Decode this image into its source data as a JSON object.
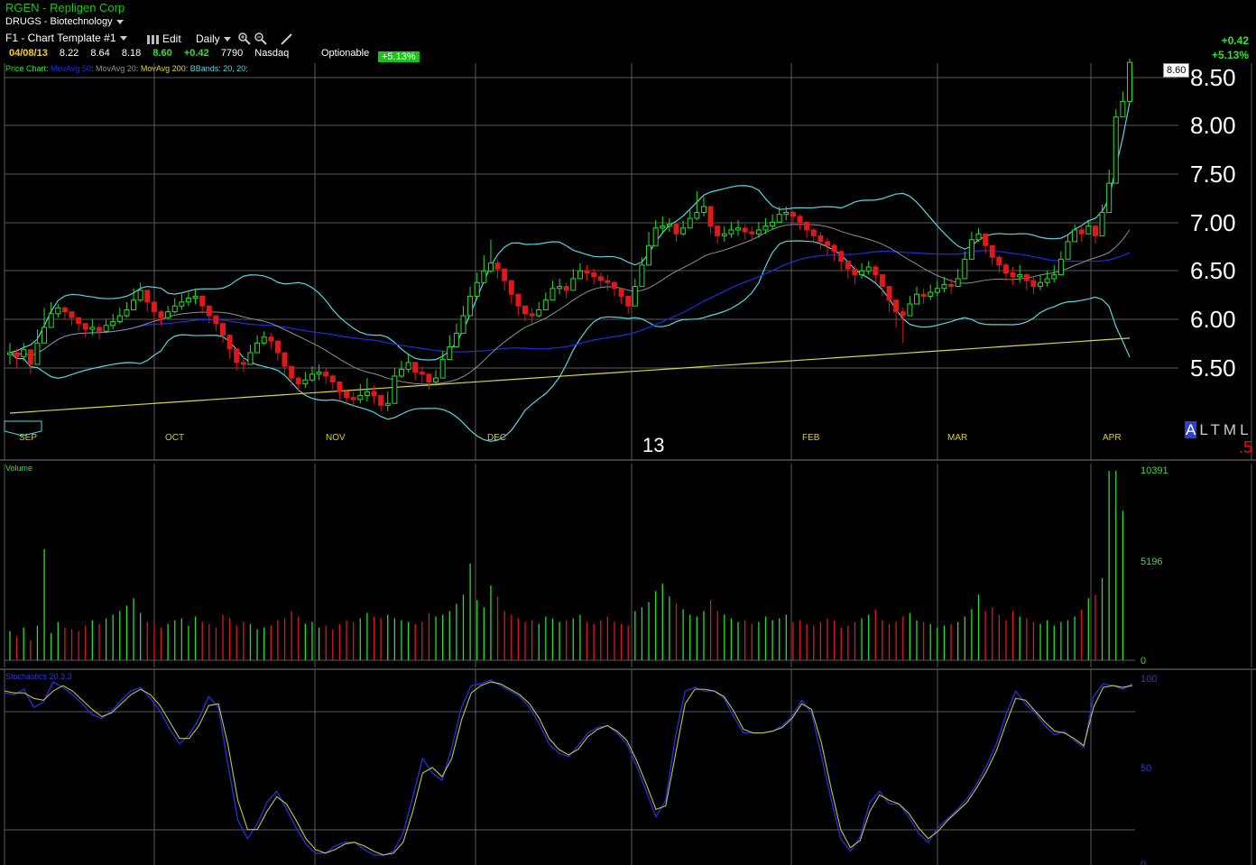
{
  "header": {
    "title": "RGEN - Repligen Corp",
    "sector": "DRUGS - Biotechnology",
    "template": "F1 - Chart Template #1",
    "edit_label": "Edit",
    "period_label": "Daily",
    "optionable_label": "Optionable",
    "pct_badge": "+5.13%",
    "change_top": "+0.42",
    "pct_top": "+5.13%"
  },
  "quote": {
    "date": "04/08/13",
    "open": "8.22",
    "high": "8.64",
    "low": "8.18",
    "close": "8.60",
    "change": "+0.42",
    "volume": "7790",
    "exchange": "Nasdaq"
  },
  "legend": {
    "price_chart": "Price Chart",
    "ma50": "MovAvg 50",
    "ma20": "MovAvg 20",
    "ma200": "MovAvg 200",
    "bbands": "BBands: 20, 20;",
    "sep": ":"
  },
  "colors": {
    "up": "#25e025",
    "down": "#e01818",
    "ma50": "#1c2ee6",
    "ma20": "#8f8f8f",
    "ma200": "#d8d83a",
    "bbands": "#58d6e0",
    "grid": "#5a5a5a",
    "stoch_k": "#2032e0",
    "stoch_d": "#c9c23a",
    "month_label": "#d8d020",
    "vol_axis": "#2ee62e",
    "stoch_axis": "#2a3ae0"
  },
  "price_axis": {
    "ticks": [
      "8.50",
      "8.00",
      "7.50",
      "7.00",
      "6.50",
      "6.00",
      "5.50"
    ],
    "current_tag": "8.60"
  },
  "months": [
    "SEP",
    "OCT",
    "NOV",
    "DEC",
    "FEB",
    "MAR",
    "APR"
  ],
  "year_label": "13",
  "altml": {
    "a": "A",
    "rest": "LTML"
  },
  "red_five": ".5",
  "volume_panel": {
    "label": "Volume",
    "ticks": [
      "10391",
      "5196",
      "0"
    ]
  },
  "stoch_panel": {
    "label": "Stochastics 20,3,3",
    "ticks": [
      "100",
      "50",
      "0"
    ]
  },
  "chart_data": {
    "type": "line",
    "ticker": "RGEN",
    "ylim": [
      5.0,
      8.6
    ],
    "close": [
      5.62,
      5.58,
      5.65,
      5.5,
      5.72,
      5.88,
      6.02,
      6.08,
      6.04,
      5.98,
      5.92,
      5.86,
      5.88,
      5.84,
      5.9,
      5.94,
      6.0,
      6.06,
      6.16,
      6.26,
      6.14,
      6.04,
      5.98,
      6.04,
      6.1,
      6.14,
      6.18,
      6.2,
      6.1,
      6.0,
      5.92,
      5.8,
      5.66,
      5.52,
      5.5,
      5.62,
      5.72,
      5.78,
      5.74,
      5.62,
      5.48,
      5.36,
      5.3,
      5.34,
      5.4,
      5.42,
      5.38,
      5.32,
      5.22,
      5.16,
      5.14,
      5.18,
      5.22,
      5.18,
      5.08,
      5.1,
      5.38,
      5.45,
      5.52,
      5.42,
      5.4,
      5.32,
      5.36,
      5.55,
      5.68,
      5.82,
      6.0,
      6.2,
      6.34,
      6.46,
      6.54,
      6.48,
      6.36,
      6.22,
      6.1,
      6.02,
      6.0,
      6.06,
      6.16,
      6.28,
      6.3,
      6.26,
      6.38,
      6.46,
      6.44,
      6.4,
      6.36,
      6.34,
      6.28,
      6.2,
      6.1,
      6.3,
      6.52,
      6.72,
      6.9,
      6.92,
      6.94,
      6.84,
      6.9,
      7.0,
      7.06,
      7.12,
      6.92,
      6.82,
      6.84,
      6.88,
      6.9,
      6.86,
      6.84,
      6.88,
      6.92,
      6.96,
      7.04,
      7.06,
      7.02,
      6.96,
      6.88,
      6.82,
      6.76,
      6.72,
      6.66,
      6.56,
      6.48,
      6.42,
      6.46,
      6.5,
      6.42,
      6.3,
      6.16,
      6.04,
      6.0,
      6.12,
      6.22,
      6.2,
      6.24,
      6.28,
      6.32,
      6.3,
      6.38,
      6.58,
      6.78,
      6.84,
      6.72,
      6.6,
      6.52,
      6.44,
      6.4,
      6.42,
      6.36,
      6.3,
      6.34,
      6.38,
      6.42,
      6.58,
      6.76,
      6.88,
      6.84,
      6.92,
      6.82,
      7.06,
      7.36,
      8.04,
      8.2,
      8.6
    ],
    "high": [
      5.72,
      5.66,
      5.72,
      5.62,
      5.86,
      6.08,
      6.14,
      6.12,
      6.1,
      6.04,
      5.98,
      5.92,
      5.96,
      5.92,
      5.96,
      6.02,
      6.08,
      6.14,
      6.28,
      6.34,
      6.24,
      6.1,
      6.06,
      6.1,
      6.18,
      6.22,
      6.24,
      6.28,
      6.18,
      6.08,
      6.0,
      5.9,
      5.74,
      5.64,
      5.58,
      5.7,
      5.8,
      5.84,
      5.82,
      5.72,
      5.56,
      5.44,
      5.38,
      5.42,
      5.48,
      5.5,
      5.46,
      5.4,
      5.3,
      5.24,
      5.22,
      5.3,
      5.36,
      5.28,
      5.18,
      5.22,
      5.46,
      5.54,
      5.6,
      5.52,
      5.48,
      5.4,
      5.44,
      5.64,
      5.8,
      5.92,
      6.1,
      6.3,
      6.44,
      6.62,
      6.78,
      6.58,
      6.44,
      6.32,
      6.18,
      6.1,
      6.08,
      6.14,
      6.24,
      6.36,
      6.38,
      6.34,
      6.48,
      6.54,
      6.52,
      6.48,
      6.44,
      6.42,
      6.36,
      6.28,
      6.2,
      6.38,
      6.6,
      6.86,
      6.98,
      7.02,
      7.0,
      6.94,
      6.98,
      7.08,
      7.28,
      7.22,
      7.0,
      6.9,
      6.92,
      6.96,
      6.98,
      6.94,
      6.92,
      6.96,
      7.0,
      7.04,
      7.12,
      7.12,
      7.08,
      7.04,
      6.96,
      6.9,
      6.86,
      6.8,
      6.74,
      6.64,
      6.56,
      6.52,
      6.54,
      6.56,
      6.52,
      6.4,
      6.24,
      6.12,
      6.08,
      6.2,
      6.3,
      6.28,
      6.32,
      6.36,
      6.4,
      6.38,
      6.48,
      6.66,
      6.86,
      6.9,
      6.82,
      6.7,
      6.62,
      6.54,
      6.5,
      6.52,
      6.44,
      6.4,
      6.42,
      6.46,
      6.52,
      6.66,
      6.84,
      6.94,
      6.92,
      6.98,
      6.92,
      7.14,
      7.5,
      8.12,
      8.3,
      8.64
    ],
    "low": [
      5.5,
      5.46,
      5.54,
      5.4,
      5.62,
      5.78,
      5.94,
      5.98,
      5.96,
      5.9,
      5.84,
      5.78,
      5.8,
      5.76,
      5.82,
      5.86,
      5.92,
      5.98,
      6.08,
      6.14,
      6.04,
      5.94,
      5.9,
      5.96,
      6.02,
      6.06,
      6.1,
      6.12,
      6.02,
      5.92,
      5.84,
      5.72,
      5.56,
      5.44,
      5.42,
      5.52,
      5.64,
      5.7,
      5.66,
      5.54,
      5.4,
      5.28,
      5.22,
      5.26,
      5.32,
      5.34,
      5.3,
      5.24,
      5.14,
      5.08,
      5.06,
      5.1,
      5.12,
      5.1,
      5.02,
      5.02,
      5.3,
      5.36,
      5.42,
      5.34,
      5.3,
      5.24,
      5.28,
      5.46,
      5.58,
      5.74,
      5.9,
      6.1,
      6.24,
      6.36,
      6.44,
      6.38,
      6.26,
      6.12,
      6.0,
      5.94,
      5.92,
      5.98,
      6.08,
      6.2,
      6.22,
      6.18,
      6.3,
      6.38,
      6.36,
      6.32,
      6.28,
      6.26,
      6.2,
      6.12,
      6.02,
      6.22,
      6.44,
      6.62,
      6.8,
      6.84,
      6.86,
      6.76,
      6.82,
      6.92,
      6.98,
      7.02,
      6.84,
      6.74,
      6.76,
      6.8,
      6.82,
      6.78,
      6.76,
      6.8,
      6.84,
      6.88,
      6.96,
      6.98,
      6.94,
      6.88,
      6.8,
      6.74,
      6.68,
      6.62,
      6.56,
      6.46,
      6.38,
      6.32,
      6.38,
      6.42,
      6.34,
      6.2,
      6.04,
      5.88,
      5.72,
      6.04,
      6.14,
      6.12,
      6.16,
      6.2,
      6.24,
      6.22,
      6.3,
      6.5,
      6.7,
      6.76,
      6.64,
      6.52,
      6.44,
      6.36,
      6.32,
      6.34,
      6.26,
      6.22,
      6.26,
      6.3,
      6.34,
      6.5,
      6.68,
      6.8,
      6.76,
      6.84,
      6.74,
      6.98,
      7.28,
      7.96,
      8.14,
      8.18
    ],
    "ma200_start": 5.0,
    "ma200_end": 5.77,
    "volume": [
      1600,
      1300,
      1800,
      1100,
      1900,
      6100,
      1500,
      2100,
      1800,
      1700,
      1600,
      1900,
      2200,
      2000,
      2300,
      2500,
      2700,
      3000,
      3400,
      2600,
      2100,
      1900,
      1800,
      2000,
      2200,
      2300,
      1900,
      2400,
      2100,
      2000,
      1800,
      2500,
      2300,
      1900,
      2100,
      2000,
      1700,
      1800,
      1900,
      2200,
      2300,
      2700,
      2400,
      2000,
      2100,
      1800,
      1900,
      1700,
      2000,
      2200,
      2100,
      2300,
      2600,
      2400,
      2300,
      2500,
      2300,
      2200,
      2100,
      2000,
      2100,
      2600,
      2400,
      2500,
      2700,
      3100,
      3600,
      5300,
      3300,
      2900,
      4100,
      3500,
      2700,
      2500,
      2300,
      2100,
      2200,
      2000,
      2400,
      2300,
      2100,
      2200,
      2300,
      2500,
      2100,
      2000,
      2200,
      2400,
      2100,
      2000,
      1900,
      2700,
      2900,
      3200,
      3800,
      4200,
      3500,
      3100,
      2800,
      2500,
      2400,
      2700,
      3300,
      2700,
      2500,
      2300,
      2100,
      2200,
      2000,
      2100,
      2400,
      2200,
      2300,
      2500,
      2100,
      2200,
      2000,
      1900,
      2100,
      2300,
      2200,
      1800,
      1900,
      2100,
      2300,
      2500,
      2800,
      2200,
      2000,
      2100,
      2400,
      2600,
      2200,
      2100,
      2000,
      1800,
      1900,
      2000,
      2100,
      2400,
      2800,
      3600,
      2700,
      2900,
      2500,
      2200,
      2700,
      2400,
      2300,
      2100,
      2000,
      2200,
      1900,
      2100,
      2200,
      2400,
      2800,
      3400,
      3600,
      4500,
      10391,
      10391,
      8200
    ],
    "stoch_k": [
      92,
      91,
      94,
      84,
      87,
      98,
      95,
      91,
      86,
      80,
      78,
      82,
      88,
      93,
      95,
      89,
      82,
      72,
      64,
      69,
      78,
      90,
      84,
      52,
      22,
      12,
      20,
      32,
      38,
      28,
      18,
      9,
      4,
      4,
      8,
      10,
      10,
      6,
      3,
      3,
      5,
      15,
      35,
      56,
      48,
      44,
      62,
      84,
      96,
      97,
      99,
      96,
      93,
      90,
      84,
      75,
      64,
      59,
      57,
      63,
      70,
      73,
      74,
      70,
      64,
      52,
      38,
      24,
      33,
      68,
      93,
      95,
      93,
      93,
      89,
      79,
      70,
      70,
      70,
      71,
      74,
      79,
      88,
      81,
      58,
      34,
      12,
      5,
      13,
      32,
      38,
      31,
      31,
      24,
      15,
      10,
      18,
      23,
      28,
      34,
      42,
      52,
      64,
      80,
      93,
      86,
      81,
      74,
      69,
      71,
      66,
      62,
      90,
      97,
      96,
      94,
      97
    ],
    "stoch_d": [
      93,
      92,
      92,
      89,
      88,
      93,
      96,
      93,
      88,
      83,
      79,
      81,
      86,
      91,
      94,
      91,
      85,
      76,
      67,
      67,
      74,
      85,
      86,
      63,
      33,
      17,
      17,
      27,
      35,
      31,
      22,
      12,
      6,
      4,
      6,
      9,
      10,
      8,
      5,
      3,
      4,
      10,
      27,
      48,
      51,
      46,
      56,
      77,
      92,
      96,
      98,
      97,
      94,
      91,
      86,
      78,
      67,
      61,
      58,
      61,
      68,
      72,
      74,
      71,
      66,
      55,
      42,
      28,
      30,
      58,
      86,
      94,
      94,
      93,
      90,
      82,
      72,
      70,
      70,
      71,
      73,
      78,
      86,
      83,
      65,
      40,
      17,
      7,
      11,
      27,
      36,
      33,
      31,
      26,
      18,
      12,
      16,
      22,
      27,
      32,
      40,
      49,
      60,
      75,
      89,
      88,
      82,
      76,
      71,
      70,
      67,
      63,
      84,
      95,
      96,
      95,
      96
    ]
  }
}
